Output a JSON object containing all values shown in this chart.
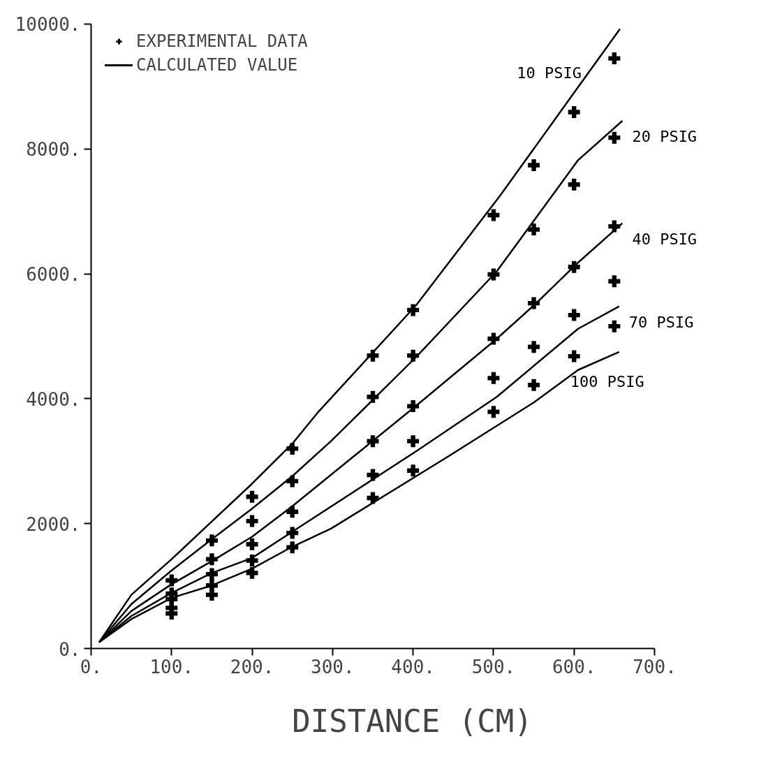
{
  "chart_data": {
    "type": "line",
    "xlabel": "DISTANCE (CM)",
    "xlim": [
      0,
      700
    ],
    "ylim": [
      0,
      10000
    ],
    "xticks": [
      {
        "value": 0,
        "label": "0."
      },
      {
        "value": 100,
        "label": "100."
      },
      {
        "value": 200,
        "label": "200."
      },
      {
        "value": 300,
        "label": "300."
      },
      {
        "value": 400,
        "label": "400."
      },
      {
        "value": 500,
        "label": "500."
      },
      {
        "value": 600,
        "label": "600."
      },
      {
        "value": 700,
        "label": "700."
      }
    ],
    "yticks": [
      {
        "value": 0,
        "label": "0."
      },
      {
        "value": 2000,
        "label": "2000."
      },
      {
        "value": 4000,
        "label": "4000."
      },
      {
        "value": 6000,
        "label": "6000."
      },
      {
        "value": 8000,
        "label": "8000."
      },
      {
        "value": 10000,
        "label": "10000."
      }
    ],
    "grid": false,
    "legend": "top left",
    "line_style": "solid",
    "annotations": [
      "CALCULATED VALUE"
    ],
    "series": [
      {
        "name": "EXPERIMENTAL DATA",
        "type": "scatter",
        "marker": "cross",
        "color": "#000000",
        "x": [
          100,
          100,
          100,
          100,
          100,
          150,
          150,
          150,
          150,
          150,
          200,
          200,
          200,
          200,
          200,
          250,
          250,
          250,
          250,
          250,
          350,
          350,
          350,
          350,
          350,
          400,
          400,
          400,
          400,
          400,
          500,
          500,
          500,
          500,
          500,
          550,
          550,
          550,
          550,
          550,
          600,
          600,
          600,
          600,
          600,
          650,
          650,
          650,
          650,
          650
        ],
        "values": [
          1090,
          880,
          790,
          650,
          560,
          1730,
          1430,
          1190,
          1010,
          860,
          2430,
          2040,
          1670,
          1410,
          1210,
          3200,
          2680,
          2190,
          1850,
          1620,
          4690,
          4030,
          3320,
          2780,
          2410,
          5420,
          4690,
          3880,
          3320,
          2850,
          6940,
          5990,
          4960,
          4330,
          3790,
          7740,
          6710,
          5530,
          4830,
          4220,
          8590,
          7430,
          6110,
          5340,
          4680,
          9450,
          8180,
          6760,
          5880,
          5160
        ]
      },
      {
        "name": "10 PSIG",
        "color": "#000000",
        "x": [
          10,
          50,
          100,
          200,
          250,
          281,
          404,
          508,
          605,
          657
        ],
        "values": [
          100,
          860,
          1430,
          2640,
          3280,
          3770,
          5500,
          7250,
          8990,
          9920
        ]
      },
      {
        "name": "20 PSIG",
        "color": "#000000",
        "x": [
          10,
          50,
          100,
          150,
          200,
          250,
          298,
          404,
          504,
          605,
          660
        ],
        "values": [
          100,
          710,
          1250,
          1750,
          2240,
          2760,
          3320,
          4670,
          6040,
          7820,
          8450
        ]
      },
      {
        "name": "40 PSIG",
        "color": "#000000",
        "x": [
          10,
          50,
          100,
          150,
          200,
          250,
          404,
          504,
          553,
          605,
          660
        ],
        "values": [
          100,
          600,
          1030,
          1400,
          1790,
          2280,
          3890,
          4960,
          5530,
          6180,
          6810
        ]
      },
      {
        "name": "70 PSIG",
        "color": "#000000",
        "x": [
          10,
          50,
          100,
          150,
          200,
          250,
          404,
          504,
          605,
          656
        ],
        "values": [
          100,
          520,
          890,
          1210,
          1450,
          1870,
          3160,
          4030,
          5120,
          5480
        ]
      },
      {
        "name": "100 PSIG",
        "color": "#000000",
        "x": [
          10,
          50,
          100,
          150,
          200,
          250,
          298,
          443,
          550,
          605,
          656
        ],
        "values": [
          100,
          470,
          810,
          1010,
          1280,
          1630,
          1920,
          3070,
          3940,
          4460,
          4750
        ]
      }
    ]
  }
}
